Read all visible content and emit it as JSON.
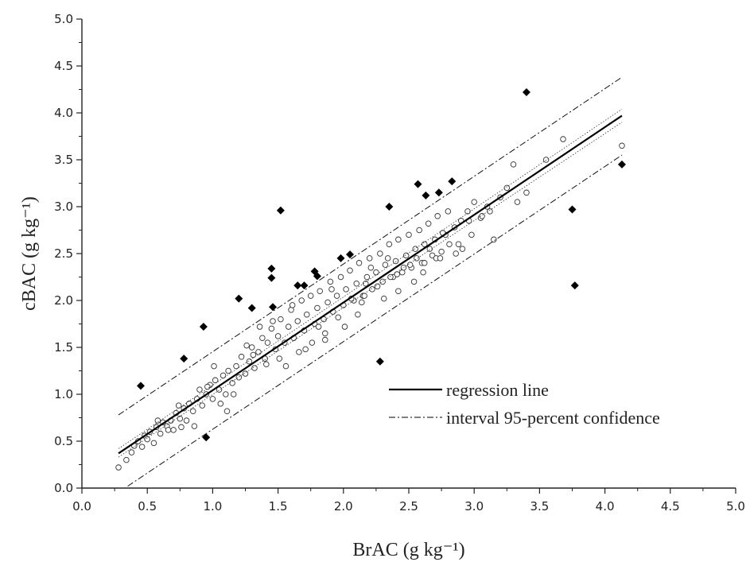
{
  "chart_data": {
    "type": "scatter",
    "xlabel": "BrAC (g kg⁻¹)",
    "ylabel": "cBAC (g kg⁻¹)",
    "xlim": [
      0.0,
      5.0
    ],
    "ylim": [
      0.0,
      5.0
    ],
    "x_ticks": [
      "0.0",
      "0.5",
      "1.0",
      "1.5",
      "2.0",
      "2.5",
      "3.0",
      "3.5",
      "4.0",
      "4.5",
      "5.0"
    ],
    "y_ticks": [
      "0.0",
      "0.5",
      "1.0",
      "1.5",
      "2.0",
      "2.5",
      "3.0",
      "3.5",
      "4.0",
      "4.5",
      "5.0"
    ],
    "grid": false,
    "legend_position": "bottom-right",
    "legend": [
      {
        "label": "regression line",
        "style": "solid"
      },
      {
        "label": "interval 95-percent confidence",
        "style": "dash-dot"
      }
    ],
    "regression_line": {
      "x": [
        0.28,
        4.13
      ],
      "y": [
        0.37,
        3.97
      ]
    },
    "confidence_band": {
      "inner_upper": {
        "x": [
          0.28,
          4.13
        ],
        "y": [
          0.42,
          4.04
        ]
      },
      "inner_lower": {
        "x": [
          0.28,
          4.13
        ],
        "y": [
          0.33,
          3.9
        ]
      }
    },
    "prediction_interval": {
      "upper": {
        "x": [
          0.28,
          4.13
        ],
        "y": [
          0.78,
          4.38
        ]
      },
      "lower": {
        "x": [
          0.35,
          4.13
        ],
        "y": [
          0.02,
          3.55
        ]
      }
    },
    "outliers": {
      "marker": "filled-diamond",
      "x": [
        0.45,
        0.78,
        0.93,
        0.95,
        1.2,
        1.3,
        1.45,
        1.45,
        1.46,
        1.52,
        1.65,
        1.7,
        1.78,
        1.8,
        1.98,
        2.05,
        2.28,
        2.35,
        2.57,
        2.63,
        2.73,
        2.83,
        3.4,
        3.75,
        3.77,
        4.13
      ],
      "y": [
        1.09,
        1.38,
        1.72,
        0.54,
        2.02,
        1.92,
        2.34,
        2.24,
        1.93,
        2.96,
        2.16,
        2.16,
        2.31,
        2.26,
        2.45,
        2.49,
        1.35,
        3.0,
        3.24,
        3.12,
        3.15,
        3.27,
        4.22,
        2.97,
        2.16,
        3.45
      ]
    },
    "open_points": {
      "marker": "open-circle",
      "x": [
        0.28,
        0.34,
        0.38,
        0.4,
        0.43,
        0.46,
        0.48,
        0.5,
        0.52,
        0.55,
        0.57,
        0.6,
        0.62,
        0.65,
        0.68,
        0.7,
        0.72,
        0.75,
        0.78,
        0.8,
        0.82,
        0.85,
        0.88,
        0.9,
        0.92,
        0.95,
        0.98,
        1.0,
        1.02,
        1.05,
        1.08,
        1.1,
        1.12,
        1.15,
        1.18,
        1.2,
        1.22,
        1.25,
        1.28,
        1.3,
        1.32,
        1.35,
        1.38,
        1.4,
        1.42,
        1.45,
        1.48,
        1.5,
        1.52,
        1.55,
        1.58,
        1.6,
        1.62,
        1.65,
        1.68,
        1.7,
        1.72,
        1.75,
        1.78,
        1.8,
        1.82,
        1.85,
        1.88,
        1.9,
        1.92,
        1.95,
        1.98,
        2.0,
        2.02,
        2.05,
        2.08,
        2.1,
        2.12,
        2.15,
        2.18,
        2.2,
        2.22,
        2.25,
        2.28,
        2.3,
        2.32,
        2.35,
        2.38,
        2.4,
        2.42,
        2.45,
        2.48,
        2.5,
        2.52,
        2.55,
        2.58,
        2.6,
        2.62,
        2.65,
        2.68,
        2.7,
        2.72,
        2.75,
        2.78,
        2.8,
        2.85,
        2.88,
        2.9,
        2.95,
        2.98,
        3.0,
        3.05,
        3.1,
        3.15,
        3.2,
        3.25,
        3.3,
        3.33,
        3.4,
        3.55,
        3.68,
        4.13,
        0.58,
        0.74,
        0.86,
        1.06,
        1.16,
        1.36,
        1.56,
        1.66,
        1.76,
        1.86,
        2.06,
        2.16,
        2.26,
        2.36,
        2.46,
        2.56,
        2.66,
        2.76,
        2.96,
        3.06,
        0.66,
        0.96,
        1.26,
        1.46,
        1.86,
        2.17,
        2.42,
        2.62,
        2.86,
        3.12,
        0.76,
        1.01,
        1.31,
        1.61,
        1.91,
        2.11,
        2.31,
        2.51,
        2.71,
        2.91,
        1.11,
        1.41,
        1.71,
        2.01,
        2.21,
        2.41,
        2.61,
        2.81,
        1.51,
        1.81,
        1.96,
        2.14,
        2.34,
        2.54,
        2.74
      ],
      "y": [
        0.22,
        0.3,
        0.38,
        0.45,
        0.5,
        0.44,
        0.56,
        0.52,
        0.6,
        0.48,
        0.65,
        0.58,
        0.7,
        0.66,
        0.72,
        0.62,
        0.8,
        0.74,
        0.85,
        0.72,
        0.9,
        0.82,
        0.95,
        1.05,
        0.88,
        1.0,
        1.1,
        0.95,
        1.15,
        1.05,
        1.2,
        1.0,
        1.25,
        1.12,
        1.3,
        1.18,
        1.4,
        1.22,
        1.35,
        1.5,
        1.28,
        1.45,
        1.6,
        1.38,
        1.55,
        1.7,
        1.48,
        1.62,
        1.8,
        1.55,
        1.72,
        1.9,
        1.6,
        1.78,
        2.0,
        1.68,
        1.85,
        2.05,
        1.75,
        1.92,
        2.1,
        1.8,
        1.98,
        2.2,
        1.88,
        2.05,
        2.25,
        1.95,
        2.12,
        2.32,
        2.0,
        2.18,
        2.4,
        2.05,
        2.25,
        2.45,
        2.12,
        2.3,
        2.5,
        2.2,
        2.38,
        2.6,
        2.25,
        2.42,
        2.65,
        2.3,
        2.48,
        2.7,
        2.35,
        2.55,
        2.75,
        2.4,
        2.6,
        2.82,
        2.48,
        2.65,
        2.9,
        2.52,
        2.7,
        2.95,
        2.78,
        2.6,
        2.85,
        2.95,
        2.7,
        3.05,
        2.88,
        3.0,
        2.65,
        3.1,
        3.2,
        3.45,
        3.05,
        3.15,
        3.5,
        3.72,
        3.65,
        0.72,
        0.88,
        0.66,
        0.9,
        1.0,
        1.72,
        1.3,
        1.45,
        1.55,
        1.65,
        2.02,
        2.05,
        2.15,
        2.25,
        2.35,
        2.45,
        2.55,
        2.72,
        2.85,
        2.9,
        0.62,
        1.08,
        1.52,
        1.78,
        1.58,
        2.18,
        2.1,
        2.4,
        2.5,
        2.95,
        0.65,
        1.3,
        1.42,
        1.95,
        2.12,
        1.85,
        2.02,
        2.38,
        2.45,
        2.55,
        0.82,
        1.32,
        1.48,
        1.72,
        2.35,
        2.28,
        2.3,
        2.6,
        1.38,
        1.72,
        1.82,
        1.98,
        2.45,
        2.2,
        2.45
      ]
    }
  }
}
